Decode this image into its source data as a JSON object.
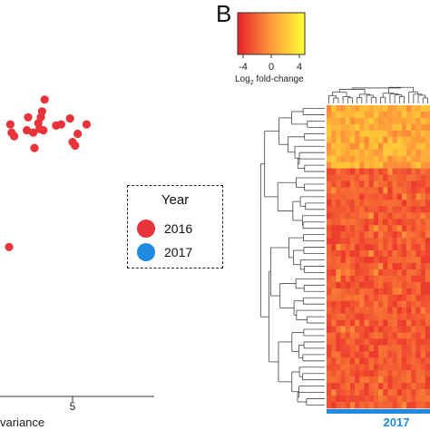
{
  "chart_data": [
    {
      "type": "scatter",
      "panel": "",
      "xlabel": "variance",
      "x_ticks": [
        "5"
      ],
      "legend": {
        "title": "Year",
        "placement": "right",
        "entries": [
          {
            "label": "2016",
            "color": "#e8333a"
          },
          {
            "label": "2017",
            "color": "#1f8be0"
          }
        ]
      },
      "series": [
        {
          "name": "2016",
          "color": "#e8333a",
          "points": [
            {
              "x": 0.1,
              "y": 2.3
            },
            {
              "x": 0.2,
              "y": 1.6
            },
            {
              "x": 0.4,
              "y": 1.3
            },
            {
              "x": 1.4,
              "y": 1.8
            },
            {
              "x": 1.5,
              "y": 2.9
            },
            {
              "x": 1.9,
              "y": 1.6
            },
            {
              "x": 2.0,
              "y": 0.3
            },
            {
              "x": 2.3,
              "y": 2.4
            },
            {
              "x": 2.4,
              "y": 1.9
            },
            {
              "x": 2.5,
              "y": 2.9
            },
            {
              "x": 2.6,
              "y": 3.4
            },
            {
              "x": 2.7,
              "y": 1.8
            },
            {
              "x": 2.8,
              "y": 4.4
            },
            {
              "x": 3.7,
              "y": 2.2
            },
            {
              "x": 4.1,
              "y": 2.3
            },
            {
              "x": 4.8,
              "y": 2.8
            },
            {
              "x": 5.0,
              "y": 0.8
            },
            {
              "x": 5.2,
              "y": 0.5
            },
            {
              "x": 5.4,
              "y": 1.5
            },
            {
              "x": 6.1,
              "y": 2.3
            },
            {
              "x": 0.0,
              "y": -8.1
            }
          ]
        }
      ]
    },
    {
      "type": "heatmap",
      "panel": "B",
      "colorbar": {
        "label_main": "Log",
        "label_sub": "2",
        "label_rest": " fold-change",
        "ticks": [
          "-4",
          "0",
          "4"
        ],
        "range": [
          -4,
          4
        ],
        "colors": [
          "#e8202a",
          "#ff9a3a",
          "#ffff33"
        ]
      },
      "rows": 48,
      "cols": 22,
      "column_annotation": {
        "label": "2017",
        "color": "#1f8be0"
      },
      "value_pattern": "top ~20% of rows mostly yellow/orange (higher fold-change); remaining rows predominantly red-orange"
    }
  ]
}
